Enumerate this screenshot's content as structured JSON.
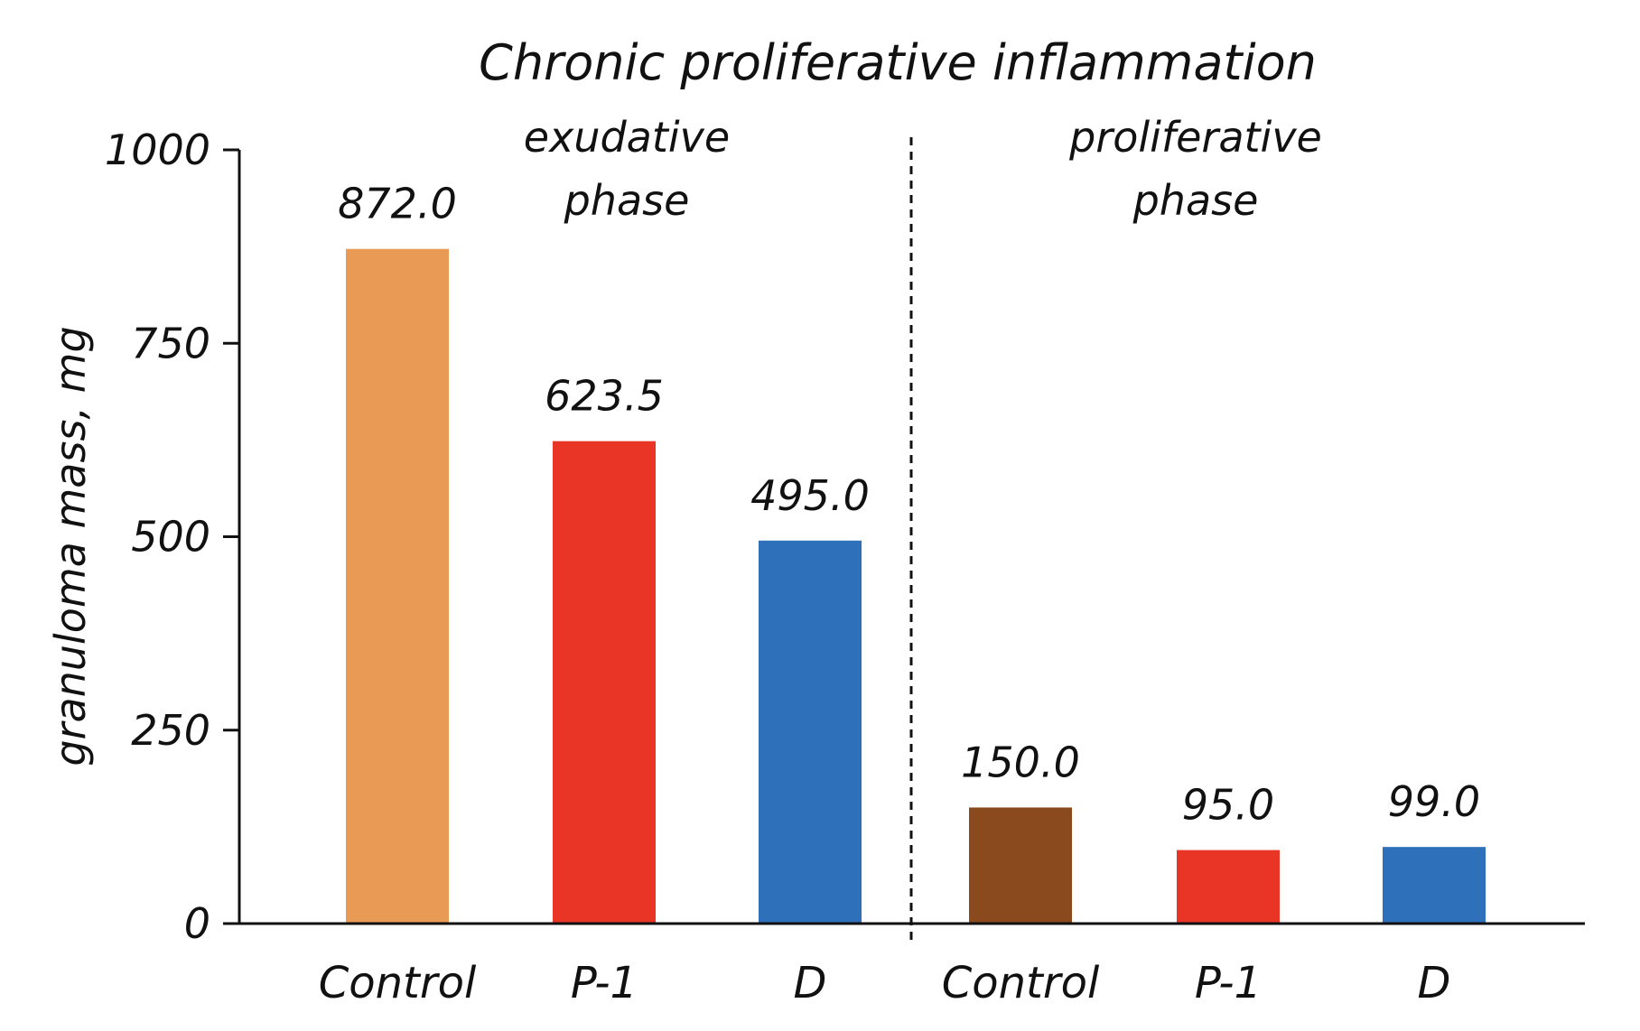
{
  "chart_data": {
    "type": "bar",
    "title": "Chronic proliferative inflammation",
    "ylabel": "granuloma mass, mg",
    "xlabel": "",
    "ylim": [
      0,
      1000
    ],
    "yticks": [
      0,
      250,
      500,
      750,
      1000
    ],
    "ytick_labels": [
      "0",
      "250",
      "500",
      "750",
      "1000"
    ],
    "grid": false,
    "legend": "none",
    "groups": [
      {
        "label_lines": [
          "exudative",
          "phase"
        ],
        "bars": [
          {
            "category": "Control",
            "value": 872.0,
            "label": "872.0",
            "color": "#E99B55"
          },
          {
            "category": "P-1",
            "value": 623.5,
            "label": "623.5",
            "color": "#E83526"
          },
          {
            "category": "D",
            "value": 495.0,
            "label": "495.0",
            "color": "#2E70BA"
          }
        ]
      },
      {
        "label_lines": [
          "proliferative",
          "phase"
        ],
        "bars": [
          {
            "category": "Control",
            "value": 150.0,
            "label": "150.0",
            "color": "#8B4A1D"
          },
          {
            "category": "P-1",
            "value": 95.0,
            "label": "95.0",
            "color": "#E83526"
          },
          {
            "category": "D",
            "value": 99.0,
            "label": "99.0",
            "color": "#2E70BA"
          }
        ]
      }
    ]
  }
}
